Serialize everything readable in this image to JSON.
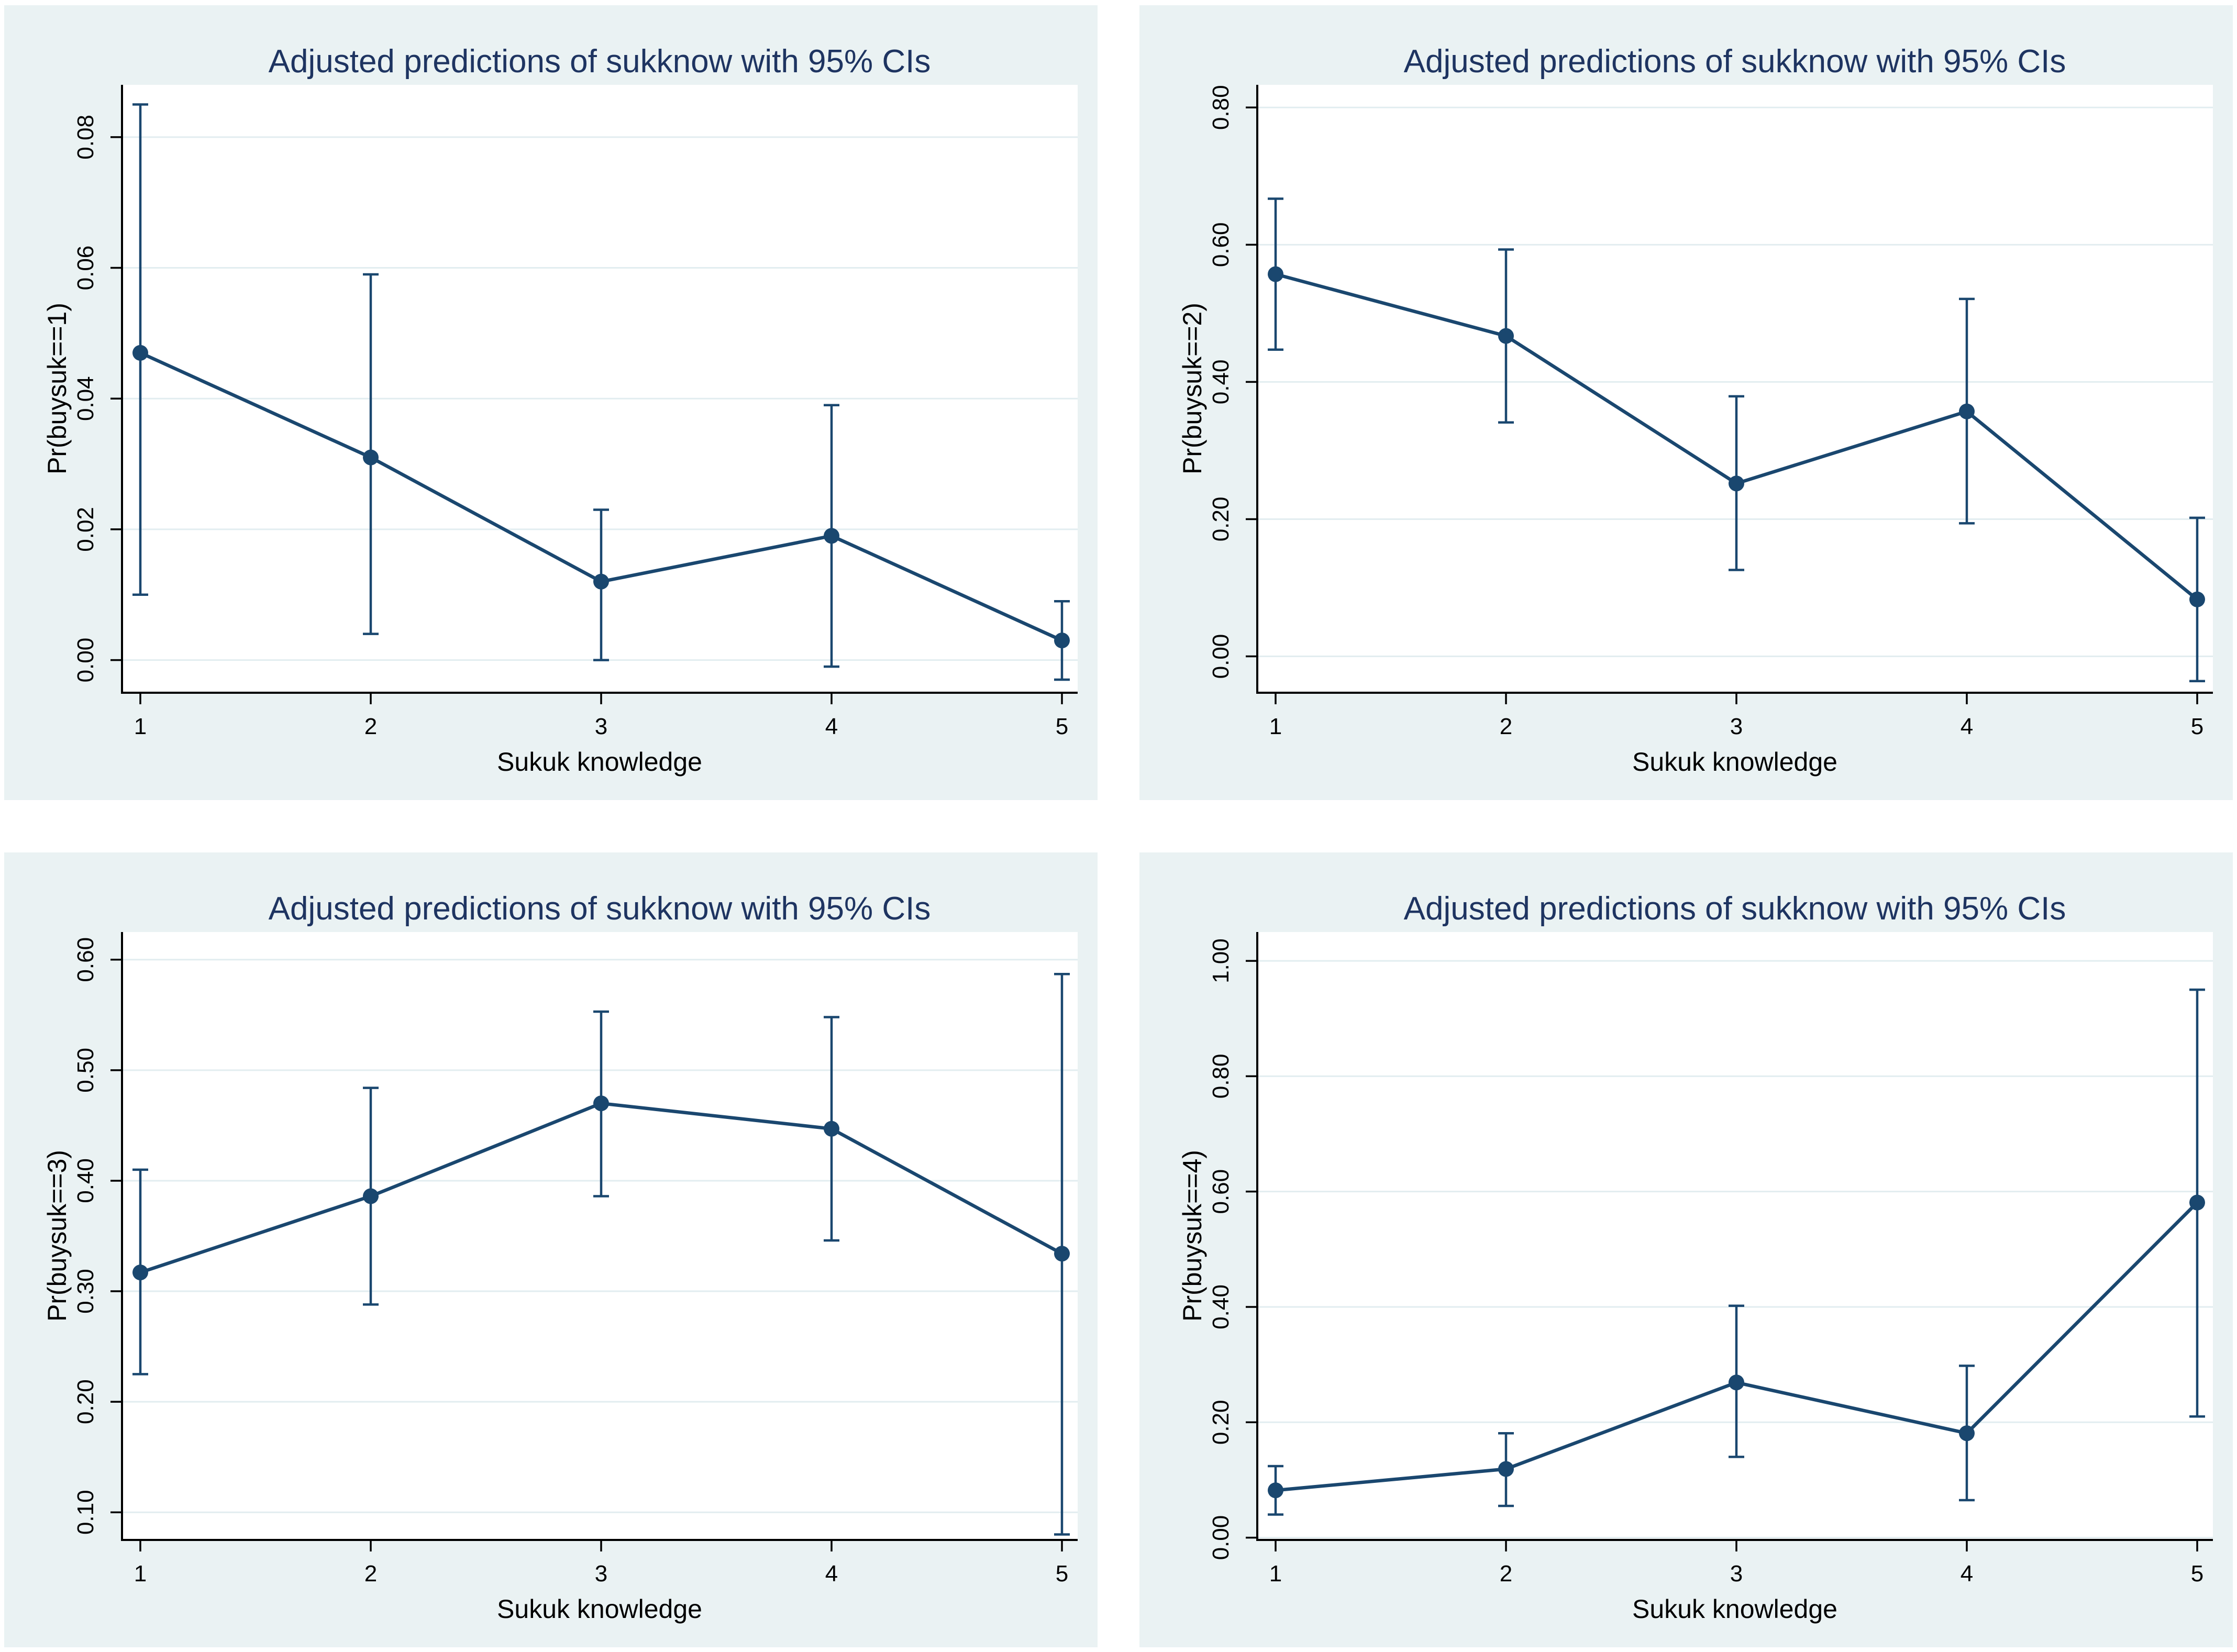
{
  "colors": {
    "page_bg": "#ffffff",
    "panel_bg": "#eaf2f3",
    "plot_bg": "#ffffff",
    "grid": "#e2edf0",
    "axis": "#000000",
    "text": "#000000",
    "title": "#1e3461",
    "series": "#1a476f"
  },
  "chart_data": [
    {
      "type": "line",
      "title": "Adjusted predictions of sukknow with 95% CIs",
      "xlabel": "Sukuk knowledge",
      "ylabel": "Pr(buysuk==1)",
      "ci_level": "95%",
      "grid": "horizontal",
      "legend": "none",
      "marker": "circle",
      "error_bars": true,
      "x": [
        1,
        2,
        3,
        4,
        5
      ],
      "xtick_labels": [
        "1",
        "2",
        "3",
        "4",
        "5"
      ],
      "values": [
        0.047,
        0.031,
        0.012,
        0.019,
        0.003
      ],
      "ci_low": [
        0.01,
        0.004,
        0.0,
        -0.001,
        -0.003
      ],
      "ci_high": [
        0.085,
        0.059,
        0.023,
        0.039,
        0.009
      ],
      "yticks": [
        0,
        0.02,
        0.04,
        0.06,
        0.08
      ],
      "ytick_labels": [
        "0.00",
        "0.02",
        "0.04",
        "0.06",
        "0.08"
      ],
      "ylim": [
        -0.005,
        0.088
      ]
    },
    {
      "type": "line",
      "title": "Adjusted predictions of sukknow with 95% CIs",
      "xlabel": "Sukuk knowledge",
      "ylabel": "Pr(buysuk==2)",
      "ci_level": "95%",
      "grid": "horizontal",
      "legend": "none",
      "marker": "circle",
      "error_bars": true,
      "x": [
        1,
        2,
        3,
        4,
        5
      ],
      "xtick_labels": [
        "1",
        "2",
        "3",
        "4",
        "5"
      ],
      "values": [
        0.557,
        0.467,
        0.252,
        0.357,
        0.083
      ],
      "ci_low": [
        0.447,
        0.341,
        0.126,
        0.194,
        -0.036
      ],
      "ci_high": [
        0.667,
        0.593,
        0.379,
        0.521,
        0.202
      ],
      "yticks": [
        0,
        0.2,
        0.4,
        0.6,
        0.8
      ],
      "ytick_labels": [
        "0.00",
        "0.20",
        "0.40",
        "0.60",
        "0.80"
      ],
      "ylim": [
        -0.053,
        0.833
      ]
    },
    {
      "type": "line",
      "title": "Adjusted predictions of sukknow with 95% CIs",
      "xlabel": "Sukuk knowledge",
      "ylabel": "Pr(buysuk==3)",
      "ci_level": "95%",
      "grid": "horizontal",
      "legend": "none",
      "marker": "circle",
      "error_bars": true,
      "x": [
        1,
        2,
        3,
        4,
        5
      ],
      "xtick_labels": [
        "1",
        "2",
        "3",
        "4",
        "5"
      ],
      "values": [
        0.317,
        0.386,
        0.47,
        0.447,
        0.334
      ],
      "ci_low": [
        0.225,
        0.288,
        0.386,
        0.346,
        0.08
      ],
      "ci_high": [
        0.41,
        0.484,
        0.553,
        0.548,
        0.587
      ],
      "yticks": [
        0.1,
        0.2,
        0.3,
        0.4,
        0.5,
        0.6
      ],
      "ytick_labels": [
        "0.10",
        "0.20",
        "0.30",
        "0.40",
        "0.50",
        "0.60"
      ],
      "ylim": [
        0.075,
        0.625
      ]
    },
    {
      "type": "line",
      "title": "Adjusted predictions of sukknow with 95% CIs",
      "xlabel": "Sukuk knowledge",
      "ylabel": "Pr(buysuk==4)",
      "ci_level": "95%",
      "grid": "horizontal",
      "legend": "none",
      "marker": "circle",
      "error_bars": true,
      "x": [
        1,
        2,
        3,
        4,
        5
      ],
      "xtick_labels": [
        "1",
        "2",
        "3",
        "4",
        "5"
      ],
      "values": [
        0.082,
        0.119,
        0.269,
        0.181,
        0.581
      ],
      "ci_low": [
        0.04,
        0.055,
        0.14,
        0.065,
        0.21
      ],
      "ci_high": [
        0.124,
        0.181,
        0.402,
        0.298,
        0.95
      ],
      "yticks": [
        0,
        0.2,
        0.4,
        0.6,
        0.8,
        1.0
      ],
      "ytick_labels": [
        "0.00",
        "0.20",
        "0.40",
        "0.60",
        "0.80",
        "1.00"
      ],
      "ylim": [
        -0.004,
        1.05
      ]
    }
  ]
}
